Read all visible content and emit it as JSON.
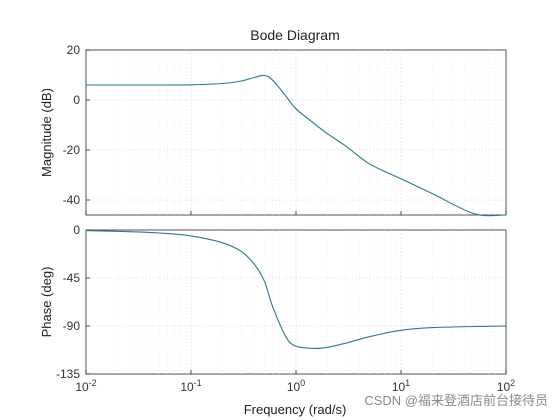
{
  "chart_data": {
    "type": "line",
    "title": "Bode Diagram",
    "xlabel": "Frequency  (rad/s)",
    "x_scale": "log",
    "xlim": [
      0.01,
      100
    ],
    "x_ticks": [
      0.01,
      0.1,
      1,
      10,
      100
    ],
    "x_tick_labels": [
      {
        "base": "10",
        "exp": "-2"
      },
      {
        "base": "10",
        "exp": "-1"
      },
      {
        "base": "10",
        "exp": "0"
      },
      {
        "base": "10",
        "exp": "1"
      },
      {
        "base": "10",
        "exp": "2"
      }
    ],
    "grid": true,
    "line_color": "#2a7a8c",
    "panels": [
      {
        "ylabel": "Magnitude (dB)",
        "ylim": [
          -46,
          20
        ],
        "y_ticks": [
          20,
          0,
          -20,
          -40
        ],
        "x": [
          0.01,
          0.02,
          0.05,
          0.1,
          0.2,
          0.3,
          0.4,
          0.5,
          0.6,
          0.8,
          1,
          1.5,
          2,
          3,
          5,
          10,
          20,
          50,
          100
        ],
        "y": [
          6.0,
          6.0,
          6.0,
          6.1,
          6.6,
          7.6,
          9.0,
          9.8,
          7.9,
          1.6,
          -3.5,
          -9.5,
          -13.5,
          -18.5,
          -25.5,
          -31.5,
          -37.5,
          -45.5,
          -46.0
        ]
      },
      {
        "ylabel": "Phase (deg)",
        "ylim": [
          -135,
          0
        ],
        "y_ticks": [
          0,
          -45,
          -90,
          -135
        ],
        "x": [
          0.01,
          0.02,
          0.05,
          0.1,
          0.2,
          0.3,
          0.4,
          0.5,
          0.6,
          0.8,
          1,
          1.5,
          2,
          3,
          5,
          10,
          20,
          50,
          100
        ],
        "y": [
          -0.6,
          -1.2,
          -2.8,
          -5.5,
          -12,
          -20,
          -32,
          -48,
          -72,
          -100,
          -109,
          -111,
          -110,
          -106,
          -100,
          -94,
          -91.5,
          -90.5,
          -90
        ]
      }
    ]
  },
  "watermark": "CSDN @福来登酒店前台接待员"
}
